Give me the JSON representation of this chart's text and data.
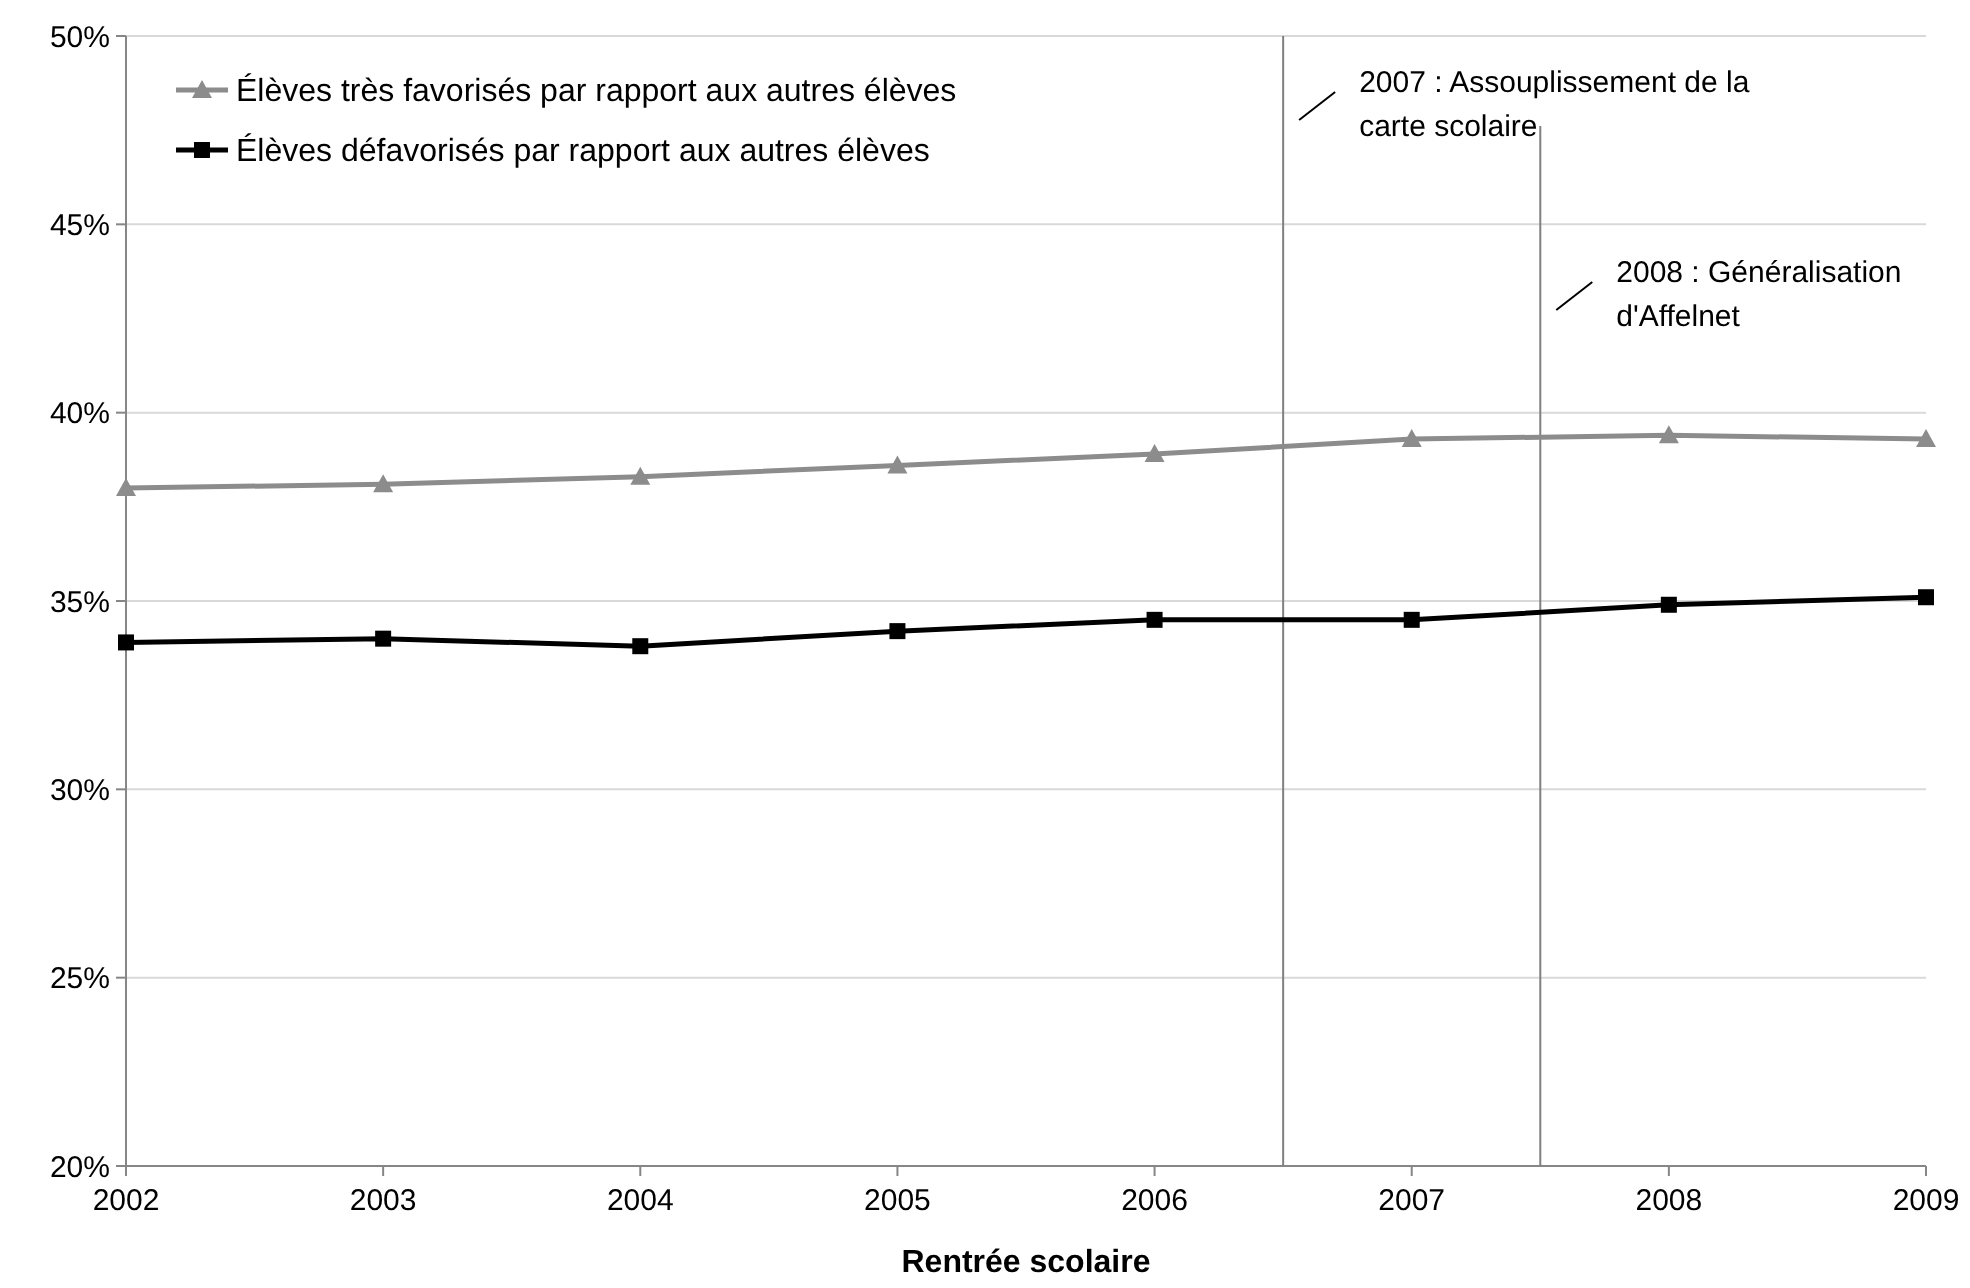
{
  "chart_data": {
    "type": "line",
    "xlabel": "Rentrée scolaire",
    "x": [
      2002,
      2003,
      2004,
      2005,
      2006,
      2007,
      2008,
      2009
    ],
    "series": [
      {
        "name": "Élèves très favorisés par rapport aux autres élèves",
        "color": "#8c8c8c",
        "marker": "triangle",
        "values": [
          38.0,
          38.1,
          38.3,
          38.6,
          38.9,
          39.3,
          39.4,
          39.3
        ]
      },
      {
        "name": "Élèves défavorisés par rapport aux autres élèves",
        "color": "#000000",
        "marker": "square",
        "values": [
          33.9,
          34.0,
          33.8,
          34.2,
          34.5,
          34.5,
          34.9,
          35.1
        ]
      }
    ],
    "xlim": [
      2002,
      2009
    ],
    "xticks": [
      2002,
      2003,
      2004,
      2005,
      2006,
      2007,
      2008,
      2009
    ],
    "ylim": [
      20,
      50
    ],
    "yticks": [
      {
        "value": 20,
        "label": "20%"
      },
      {
        "value": 25,
        "label": "25%"
      },
      {
        "value": 30,
        "label": "30%"
      },
      {
        "value": 35,
        "label": "35%"
      },
      {
        "value": 40,
        "label": "40%"
      },
      {
        "value": 45,
        "label": "45%"
      },
      {
        "value": 50,
        "label": "50%"
      }
    ],
    "ref_lines": [
      {
        "axis": "x",
        "value": 2006.5,
        "label": "2007 : Assouplissement de la carte scolaire",
        "color": "#808080"
      },
      {
        "axis": "x",
        "value": 2007.5,
        "label": "2008 : Généralisation d'Affelnet",
        "color": "#808080"
      }
    ],
    "grid": "y",
    "legend": "top left",
    "line_style": "solid"
  }
}
